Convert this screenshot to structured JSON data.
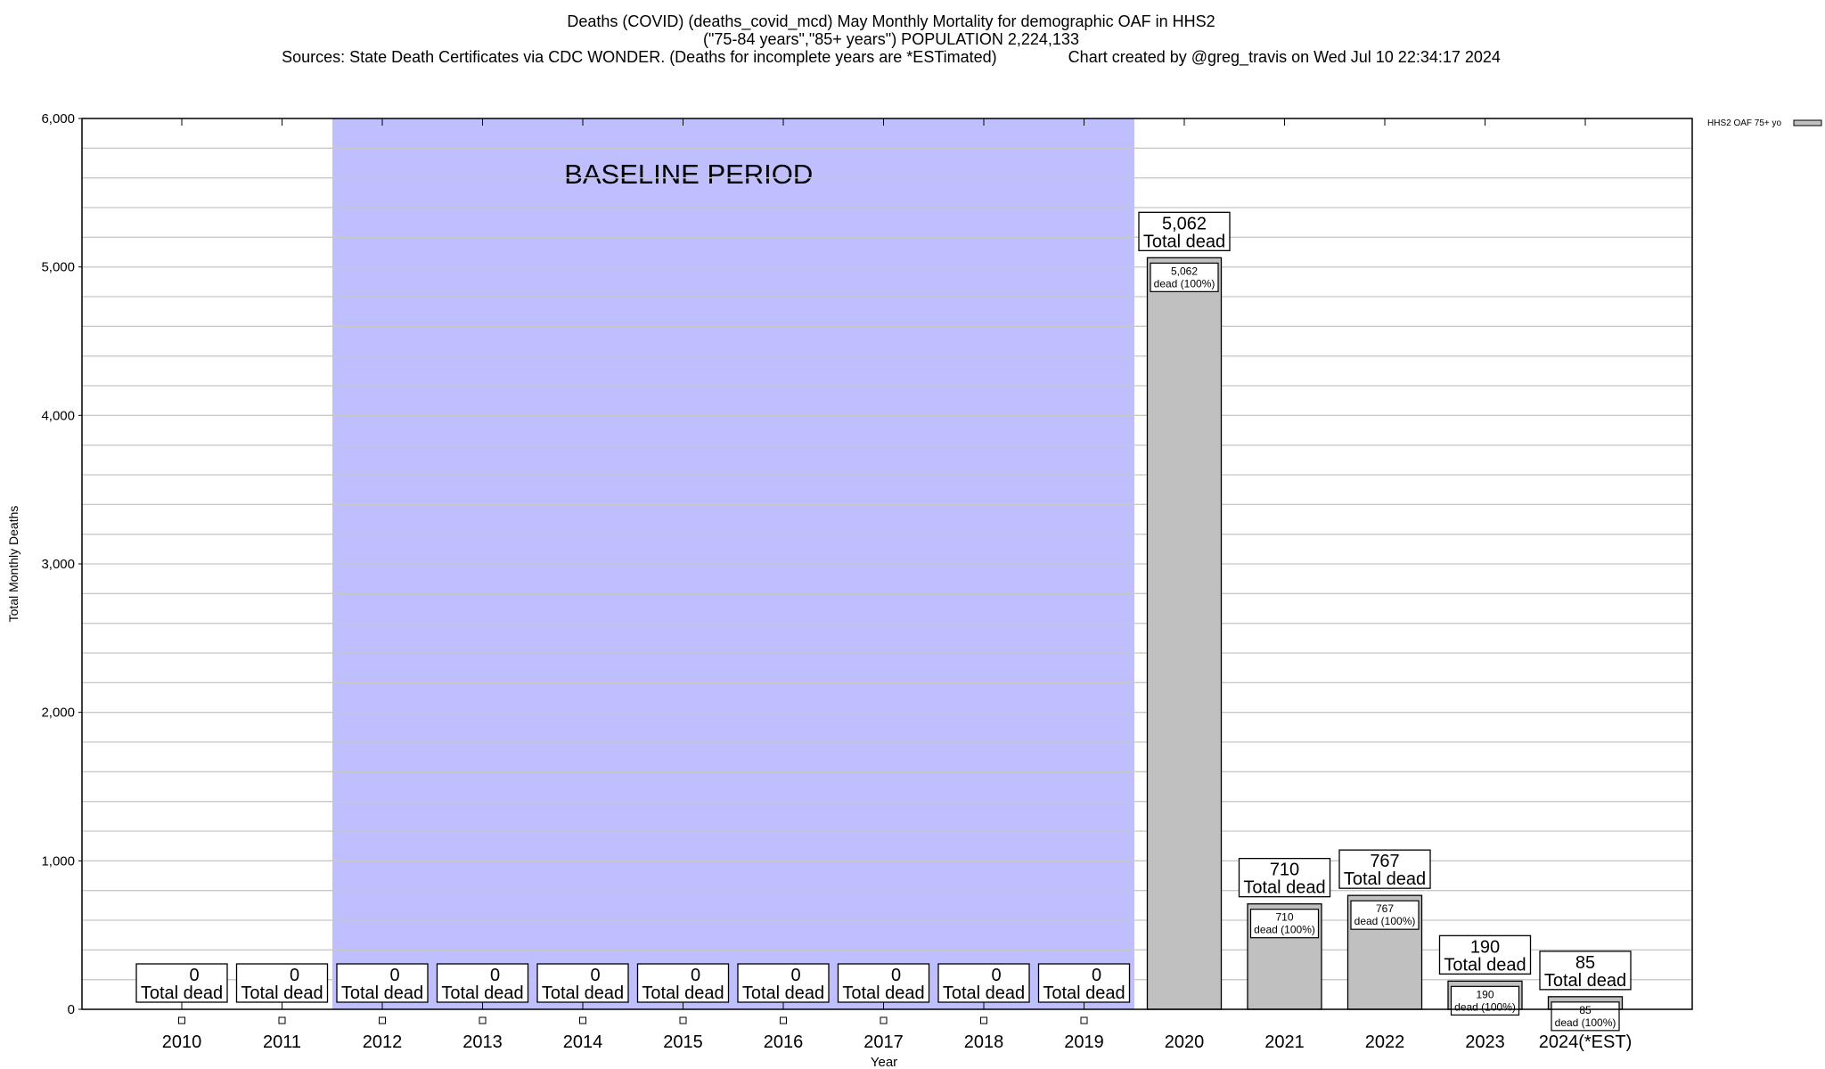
{
  "title": {
    "line1": "Deaths (COVID) (deaths_covid_mcd) May Monthly Mortality for demographic OAF in HHS2",
    "line2": "(\"75-84 years\",\"85+ years\") POPULATION 2,224,133",
    "line3": "Sources: State Death Certificates via CDC WONDER. (Deaths for incomplete years are *ESTimated)                Chart created by @greg_travis on Wed Jul 10 22:34:17 2024"
  },
  "chart_data": {
    "type": "bar",
    "xlabel": "Year",
    "ylabel": "Total Monthly Deaths",
    "ylim": [
      0,
      6000
    ],
    "yticks": [
      0,
      1000,
      2000,
      3000,
      4000,
      5000,
      6000
    ],
    "ytick_labels": [
      "0",
      "1,000",
      "2,000",
      "3,000",
      "4,000",
      "5,000",
      "6,000"
    ],
    "grid": true,
    "legend_position": "top-right",
    "categories": [
      "2010",
      "2011",
      "2012",
      "2013",
      "2014",
      "2015",
      "2016",
      "2017",
      "2018",
      "2019",
      "2020",
      "2021",
      "2022",
      "2023",
      "2024(*EST)"
    ],
    "series": [
      {
        "name": "HHS2 OAF 75+ yo",
        "color": "#c0c0c0",
        "values": [
          0,
          0,
          0,
          0,
          0,
          0,
          0,
          0,
          0,
          0,
          5062,
          710,
          767,
          190,
          85
        ],
        "value_labels": [
          "0",
          "0",
          "0",
          "0",
          "0",
          "0",
          "0",
          "0",
          "0",
          "0",
          "5,062",
          "710",
          "767",
          "190",
          "85"
        ]
      }
    ],
    "total_label_suffix": "Total dead",
    "inner_label_suffix": "dead (100%)",
    "baseline_period": {
      "label": "BASELINE PERIOD",
      "from": "2012",
      "to": "2019",
      "color": "#bfbfff"
    }
  }
}
